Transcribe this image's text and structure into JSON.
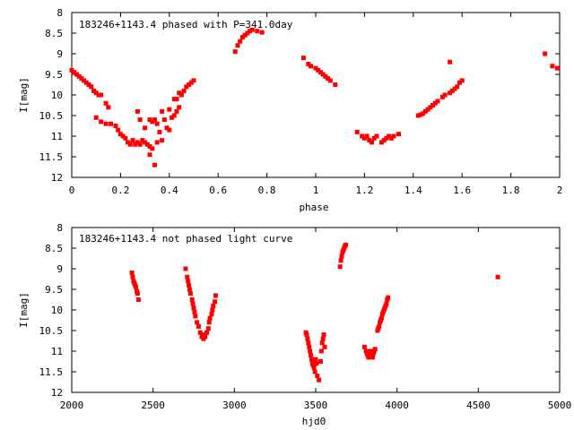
{
  "chart_data": [
    {
      "type": "scatter",
      "title": "183246+1143.4 phased with P=341.0day",
      "xlabel": "phase",
      "ylabel": "I[mag]",
      "xlim": [
        0,
        2
      ],
      "ylim": [
        12,
        8
      ],
      "y_inverted": true,
      "grid": false,
      "marker_color": "#ff0000",
      "xticks": [
        "0",
        "0.2",
        "0.4",
        "0.6",
        "0.8",
        "1",
        "1.2",
        "1.4",
        "1.6",
        "1.8",
        "2"
      ],
      "yticks": [
        "8",
        "8.5",
        "9",
        "9.5",
        "10",
        "10.5",
        "11",
        "11.5",
        "12"
      ],
      "points": [
        [
          0.0,
          9.4
        ],
        [
          0.01,
          9.45
        ],
        [
          0.02,
          9.5
        ],
        [
          0.03,
          9.55
        ],
        [
          0.04,
          9.6
        ],
        [
          0.05,
          9.65
        ],
        [
          0.06,
          9.7
        ],
        [
          0.07,
          9.75
        ],
        [
          0.08,
          9.8
        ],
        [
          0.09,
          9.9
        ],
        [
          0.1,
          9.95
        ],
        [
          0.11,
          10.0
        ],
        [
          0.12,
          10.0
        ],
        [
          0.14,
          10.2
        ],
        [
          0.15,
          10.3
        ],
        [
          0.1,
          10.55
        ],
        [
          0.12,
          10.65
        ],
        [
          0.14,
          10.7
        ],
        [
          0.16,
          10.7
        ],
        [
          0.18,
          10.75
        ],
        [
          0.19,
          10.85
        ],
        [
          0.2,
          10.95
        ],
        [
          0.21,
          11.0
        ],
        [
          0.22,
          11.05
        ],
        [
          0.23,
          11.15
        ],
        [
          0.24,
          11.2
        ],
        [
          0.25,
          11.1
        ],
        [
          0.26,
          11.2
        ],
        [
          0.27,
          11.15
        ],
        [
          0.28,
          11.2
        ],
        [
          0.29,
          11.1
        ],
        [
          0.3,
          11.15
        ],
        [
          0.31,
          11.2
        ],
        [
          0.32,
          11.25
        ],
        [
          0.33,
          11.3
        ],
        [
          0.35,
          11.15
        ],
        [
          0.37,
          11.1
        ],
        [
          0.27,
          10.4
        ],
        [
          0.28,
          10.6
        ],
        [
          0.3,
          10.8
        ],
        [
          0.32,
          10.6
        ],
        [
          0.33,
          10.65
        ],
        [
          0.34,
          10.6
        ],
        [
          0.34,
          11.7
        ],
        [
          0.32,
          11.45
        ],
        [
          0.35,
          10.7
        ],
        [
          0.37,
          10.4
        ],
        [
          0.38,
          10.6
        ],
        [
          0.39,
          10.8
        ],
        [
          0.36,
          10.9
        ],
        [
          0.4,
          10.85
        ],
        [
          0.41,
          10.55
        ],
        [
          0.42,
          10.5
        ],
        [
          0.43,
          10.4
        ],
        [
          0.44,
          10.3
        ],
        [
          0.43,
          10.1
        ],
        [
          0.45,
          10.0
        ],
        [
          0.44,
          9.95
        ],
        [
          0.46,
          9.9
        ],
        [
          0.47,
          9.8
        ],
        [
          0.48,
          9.75
        ],
        [
          0.49,
          9.7
        ],
        [
          0.5,
          9.65
        ],
        [
          0.4,
          10.35
        ],
        [
          0.42,
          10.1
        ],
        [
          0.67,
          8.95
        ],
        [
          0.68,
          8.8
        ],
        [
          0.69,
          8.7
        ],
        [
          0.7,
          8.6
        ],
        [
          0.71,
          8.55
        ],
        [
          0.72,
          8.5
        ],
        [
          0.73,
          8.45
        ],
        [
          0.74,
          8.42
        ],
        [
          0.76,
          8.45
        ],
        [
          0.78,
          8.48
        ],
        [
          0.95,
          9.1
        ],
        [
          0.97,
          9.25
        ],
        [
          0.98,
          9.3
        ],
        [
          1.0,
          9.35
        ],
        [
          1.01,
          9.4
        ],
        [
          1.02,
          9.45
        ],
        [
          1.03,
          9.5
        ],
        [
          1.04,
          9.55
        ],
        [
          1.05,
          9.6
        ],
        [
          1.06,
          9.65
        ],
        [
          1.08,
          9.75
        ],
        [
          1.17,
          10.9
        ],
        [
          1.19,
          11.0
        ],
        [
          1.2,
          11.05
        ],
        [
          1.21,
          11.0
        ],
        [
          1.22,
          11.1
        ],
        [
          1.23,
          11.15
        ],
        [
          1.24,
          11.05
        ],
        [
          1.25,
          11.0
        ],
        [
          1.27,
          11.15
        ],
        [
          1.28,
          11.1
        ],
        [
          1.29,
          11.05
        ],
        [
          1.3,
          11.0
        ],
        [
          1.31,
          11.05
        ],
        [
          1.32,
          11.0
        ],
        [
          1.34,
          10.95
        ],
        [
          1.42,
          10.5
        ],
        [
          1.43,
          10.48
        ],
        [
          1.44,
          10.45
        ],
        [
          1.45,
          10.4
        ],
        [
          1.46,
          10.35
        ],
        [
          1.47,
          10.3
        ],
        [
          1.48,
          10.25
        ],
        [
          1.49,
          10.2
        ],
        [
          1.5,
          10.15
        ],
        [
          1.52,
          10.05
        ],
        [
          1.53,
          10.0
        ],
        [
          1.55,
          9.95
        ],
        [
          1.56,
          9.9
        ],
        [
          1.57,
          9.85
        ],
        [
          1.58,
          9.8
        ],
        [
          1.59,
          9.7
        ],
        [
          1.6,
          9.65
        ],
        [
          1.55,
          9.2
        ],
        [
          1.94,
          9.0
        ],
        [
          1.97,
          9.3
        ],
        [
          1.99,
          9.35
        ]
      ]
    },
    {
      "type": "scatter",
      "title": "183246+1143.4 not phased light curve",
      "xlabel": "hjd0",
      "ylabel": "I[mag]",
      "xlim": [
        2000,
        5000
      ],
      "ylim": [
        12,
        8
      ],
      "y_inverted": true,
      "grid": false,
      "marker_color": "#ff0000",
      "xticks": [
        "2000",
        "2500",
        "3000",
        "3500",
        "4000",
        "4500",
        "5000"
      ],
      "yticks": [
        "8",
        "8.5",
        "9",
        "9.5",
        "10",
        "10.5",
        "11",
        "11.5",
        "12"
      ],
      "points": [
        [
          2370,
          9.1
        ],
        [
          2375,
          9.2
        ],
        [
          2380,
          9.3
        ],
        [
          2385,
          9.35
        ],
        [
          2390,
          9.4
        ],
        [
          2395,
          9.45
        ],
        [
          2400,
          9.55
        ],
        [
          2405,
          9.6
        ],
        [
          2410,
          9.75
        ],
        [
          2700,
          9.0
        ],
        [
          2710,
          9.2
        ],
        [
          2715,
          9.3
        ],
        [
          2720,
          9.4
        ],
        [
          2725,
          9.5
        ],
        [
          2730,
          9.6
        ],
        [
          2740,
          9.75
        ],
        [
          2745,
          9.85
        ],
        [
          2750,
          9.95
        ],
        [
          2755,
          10.05
        ],
        [
          2760,
          10.15
        ],
        [
          2770,
          10.3
        ],
        [
          2780,
          10.4
        ],
        [
          2790,
          10.55
        ],
        [
          2800,
          10.65
        ],
        [
          2810,
          10.7
        ],
        [
          2815,
          10.6
        ],
        [
          2820,
          10.65
        ],
        [
          2830,
          10.55
        ],
        [
          2840,
          10.45
        ],
        [
          2845,
          10.3
        ],
        [
          2850,
          10.2
        ],
        [
          2860,
          10.1
        ],
        [
          2865,
          10.0
        ],
        [
          2870,
          9.9
        ],
        [
          2880,
          9.8
        ],
        [
          2885,
          9.65
        ],
        [
          3440,
          10.55
        ],
        [
          3445,
          10.6
        ],
        [
          3450,
          10.7
        ],
        [
          3455,
          10.8
        ],
        [
          3460,
          10.9
        ],
        [
          3465,
          11.0
        ],
        [
          3470,
          11.1
        ],
        [
          3475,
          11.2
        ],
        [
          3480,
          11.3
        ],
        [
          3485,
          11.35
        ],
        [
          3490,
          11.4
        ],
        [
          3495,
          11.5
        ],
        [
          3500,
          11.2
        ],
        [
          3505,
          11.3
        ],
        [
          3510,
          11.6
        ],
        [
          3520,
          11.7
        ],
        [
          3530,
          11.25
        ],
        [
          3535,
          11.0
        ],
        [
          3540,
          10.8
        ],
        [
          3545,
          10.7
        ],
        [
          3550,
          10.6
        ],
        [
          3555,
          10.9
        ],
        [
          3650,
          8.95
        ],
        [
          3655,
          8.8
        ],
        [
          3660,
          8.7
        ],
        [
          3665,
          8.6
        ],
        [
          3670,
          8.55
        ],
        [
          3675,
          8.5
        ],
        [
          3680,
          8.45
        ],
        [
          3685,
          8.42
        ],
        [
          3800,
          10.9
        ],
        [
          3810,
          11.0
        ],
        [
          3815,
          11.05
        ],
        [
          3820,
          11.1
        ],
        [
          3825,
          11.15
        ],
        [
          3830,
          11.05
        ],
        [
          3835,
          11.0
        ],
        [
          3840,
          11.1
        ],
        [
          3850,
          11.15
        ],
        [
          3855,
          11.05
        ],
        [
          3860,
          11.0
        ],
        [
          3865,
          10.95
        ],
        [
          3880,
          10.5
        ],
        [
          3885,
          10.45
        ],
        [
          3890,
          10.4
        ],
        [
          3895,
          10.3
        ],
        [
          3900,
          10.25
        ],
        [
          3905,
          10.2
        ],
        [
          3910,
          10.1
        ],
        [
          3915,
          10.05
        ],
        [
          3920,
          10.0
        ],
        [
          3925,
          9.95
        ],
        [
          3930,
          9.9
        ],
        [
          3935,
          9.85
        ],
        [
          3940,
          9.75
        ],
        [
          3945,
          9.7
        ],
        [
          4620,
          9.2
        ]
      ]
    }
  ]
}
